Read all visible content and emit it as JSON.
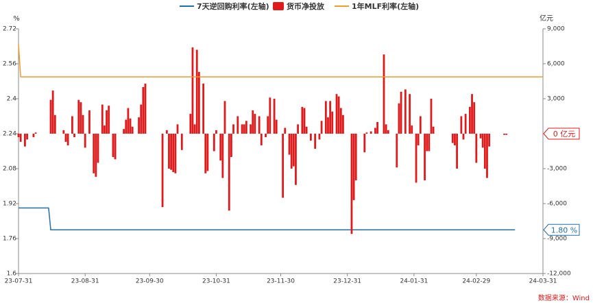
{
  "chart_data": {
    "type": "combo",
    "y_label": "%",
    "y2_label": "亿元",
    "source": "数据来源：Wind",
    "xlim": [
      "23-07-31",
      "24-03-31"
    ],
    "xticks": [
      "23-07-31",
      "23-08-31",
      "23-09-30",
      "23-10-31",
      "23-11-30",
      "23-12-31",
      "24-01-31",
      "24-02-29",
      "24-03-31"
    ],
    "ylim": [
      1.6,
      2.72
    ],
    "yticks": [
      1.6,
      1.76,
      1.92,
      2.08,
      2.24,
      2.4,
      2.56,
      2.72
    ],
    "y2lim": [
      -12000,
      9000
    ],
    "y2ticks": [
      {
        "value": -12000,
        "label": "-12,000"
      },
      {
        "value": -9000,
        "label": "-9,000"
      },
      {
        "value": -6000,
        "label": "-6,000"
      },
      {
        "value": -3000,
        "label": "-3,000"
      },
      {
        "value": 3000,
        "label": "3,000"
      },
      {
        "value": 6000,
        "label": "6,000"
      },
      {
        "value": 9000,
        "label": "9,000"
      }
    ],
    "annotations": [
      {
        "text": "0 亿元",
        "value": 0,
        "axis": "y2",
        "color": "#e01a1a"
      },
      {
        "text": "1.80 %",
        "value": 1.8,
        "axis": "y",
        "color": "#1f6fa8"
      }
    ],
    "series": [
      {
        "name": "7天逆回购利率(左轴)",
        "type": "line",
        "color": "#1f6fa8",
        "x": [
          "23-07-31",
          "23-08-14",
          "23-08-15",
          "24-03-18"
        ],
        "values": [
          1.9,
          1.9,
          1.8,
          1.8
        ]
      },
      {
        "name": "货币净投放",
        "type": "bar",
        "axis": "y2",
        "color": "#e01a1a",
        "x": [
          "23-07-31",
          "23-08-01",
          "23-08-03",
          "23-08-04",
          "23-08-07",
          "23-08-08",
          "23-08-15",
          "23-08-16",
          "23-08-17",
          "23-08-21",
          "23-08-22",
          "23-08-23",
          "23-08-25",
          "23-08-26",
          "23-08-28",
          "23-08-29",
          "23-08-30",
          "23-08-31",
          "23-09-02",
          "23-09-04",
          "23-09-05",
          "23-09-06",
          "23-09-08",
          "23-09-09",
          "23-09-10",
          "23-09-11",
          "23-09-13",
          "23-09-14",
          "23-09-18",
          "23-09-19",
          "23-09-20",
          "23-09-21",
          "23-09-22",
          "23-09-25",
          "23-09-26",
          "23-09-27",
          "23-09-28",
          "23-10-06",
          "23-10-08",
          "23-10-09",
          "23-10-10",
          "23-10-11",
          "23-10-12",
          "23-10-13",
          "23-10-15",
          "23-10-19",
          "23-10-20",
          "23-10-21",
          "23-10-22",
          "23-10-23",
          "23-10-25",
          "23-10-26",
          "23-10-27",
          "23-10-30",
          "23-10-31",
          "23-11-02",
          "23-11-03",
          "23-11-04",
          "23-11-06",
          "23-11-07",
          "23-11-08",
          "23-11-10",
          "23-11-12",
          "23-11-13",
          "23-11-14",
          "23-11-16",
          "23-11-17",
          "23-11-18",
          "23-11-20",
          "23-11-21",
          "23-11-23",
          "23-11-24",
          "23-11-25",
          "23-11-27",
          "23-11-28",
          "23-12-01",
          "23-12-02",
          "23-12-04",
          "23-12-05",
          "23-12-06",
          "23-12-07",
          "23-12-08",
          "23-12-10",
          "23-12-11",
          "23-12-12",
          "23-12-14",
          "23-12-16",
          "23-12-18",
          "23-12-19",
          "23-12-21",
          "23-12-22",
          "23-12-23",
          "23-12-24",
          "23-12-26",
          "23-12-27",
          "23-12-28",
          "23-12-29",
          "24-01-02",
          "24-01-03",
          "24-01-04",
          "24-01-08",
          "24-01-09",
          "24-01-11",
          "24-01-13",
          "24-01-14",
          "24-01-17",
          "24-01-18",
          "24-01-19",
          "24-01-23",
          "24-01-24",
          "24-01-25",
          "24-01-27",
          "24-01-29",
          "24-01-30",
          "24-02-01",
          "24-02-02",
          "24-02-03",
          "24-02-05",
          "24-02-06",
          "24-02-07",
          "24-02-08",
          "24-02-09",
          "24-02-18",
          "24-02-19",
          "24-02-20",
          "24-02-22",
          "24-02-23",
          "24-02-24",
          "24-02-26",
          "24-02-27",
          "24-02-28",
          "24-02-29",
          "24-03-02",
          "24-03-03",
          "24-03-04",
          "24-03-05",
          "24-03-06",
          "24-03-13",
          "24-03-14"
        ],
        "values": [
          -300,
          -700,
          -1100,
          -500,
          -300,
          100,
          2900,
          3700,
          1600,
          300,
          -700,
          -1000,
          1500,
          -300,
          2900,
          2700,
          1600,
          -1200,
          2000,
          -3400,
          -3700,
          -2500,
          2500,
          700,
          2000,
          2400,
          -2000,
          -2200,
          400,
          1200,
          2200,
          1300,
          600,
          1400,
          2500,
          4000,
          4300,
          -6300,
          300,
          -3000,
          -3100,
          -3300,
          -3400,
          800,
          -1400,
          1700,
          7400,
          800,
          7200,
          5300,
          4300,
          -3400,
          -3200,
          -1500,
          300,
          -2300,
          -3800,
          2800,
          -6600,
          -2000,
          800,
          1500,
          800,
          800,
          1100,
          800,
          2000,
          1700,
          1500,
          -1000,
          -300,
          1500,
          3100,
          3000,
          1200,
          -5500,
          500,
          -1800,
          -3000,
          -2800,
          -4400,
          800,
          2300,
          2200,
          600,
          -600,
          -1300,
          -500,
          1100,
          2800,
          1400,
          2800,
          1900,
          3400,
          3200,
          2200,
          1600,
          -8600,
          -5700,
          -4000,
          -1600,
          100,
          200,
          500,
          1000,
          6800,
          800,
          300,
          -2900,
          2600,
          3600,
          3800,
          3400,
          700,
          -4200,
          -1000,
          1500,
          -4000,
          -1500,
          -1500,
          3000,
          600,
          -800,
          -1000,
          -3000,
          1500,
          -500,
          1700,
          2300,
          3400,
          2700,
          -2500,
          -400,
          -1200,
          -3000,
          -3800,
          -1100,
          -100,
          -100
        ]
      },
      {
        "name": "1年MLF利率(左轴)",
        "type": "line",
        "color": "#f39a2b",
        "x": [
          "23-07-31",
          "23-08-01",
          "24-03-31"
        ],
        "values": [
          2.65,
          2.5,
          2.5
        ]
      }
    ]
  }
}
